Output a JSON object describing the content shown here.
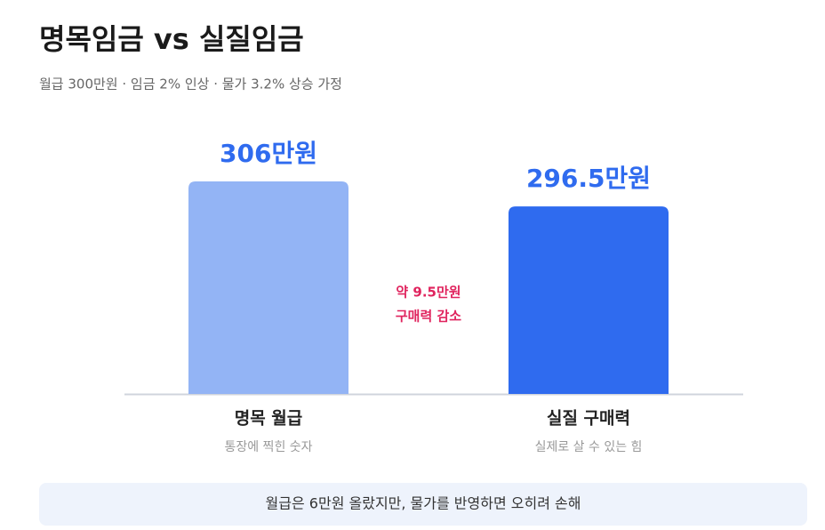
{
  "chart_data": {
    "type": "bar",
    "title": "명목임금 vs 실질임금",
    "subtitle": "월급 300만원 · 임금 2% 인상 · 물가 3.2% 상승 가정",
    "categories": [
      "명목 월급",
      "실질 구매력"
    ],
    "category_notes": [
      "통장에 찍힌 숫자",
      "실제로 살 수 있는 힘"
    ],
    "values": [
      306,
      296.5
    ],
    "value_labels": [
      "306만원",
      "296.5만원"
    ],
    "colors": [
      "#93b4f5",
      "#2f6bef"
    ],
    "label_color": "#2f6bef",
    "ylim": [
      225,
      325
    ],
    "annotation": [
      "약 9.5만원",
      "구매력 감소"
    ],
    "note": "월급은 6만원 올랐지만, 물가를 반영하면 오히려 손해"
  }
}
